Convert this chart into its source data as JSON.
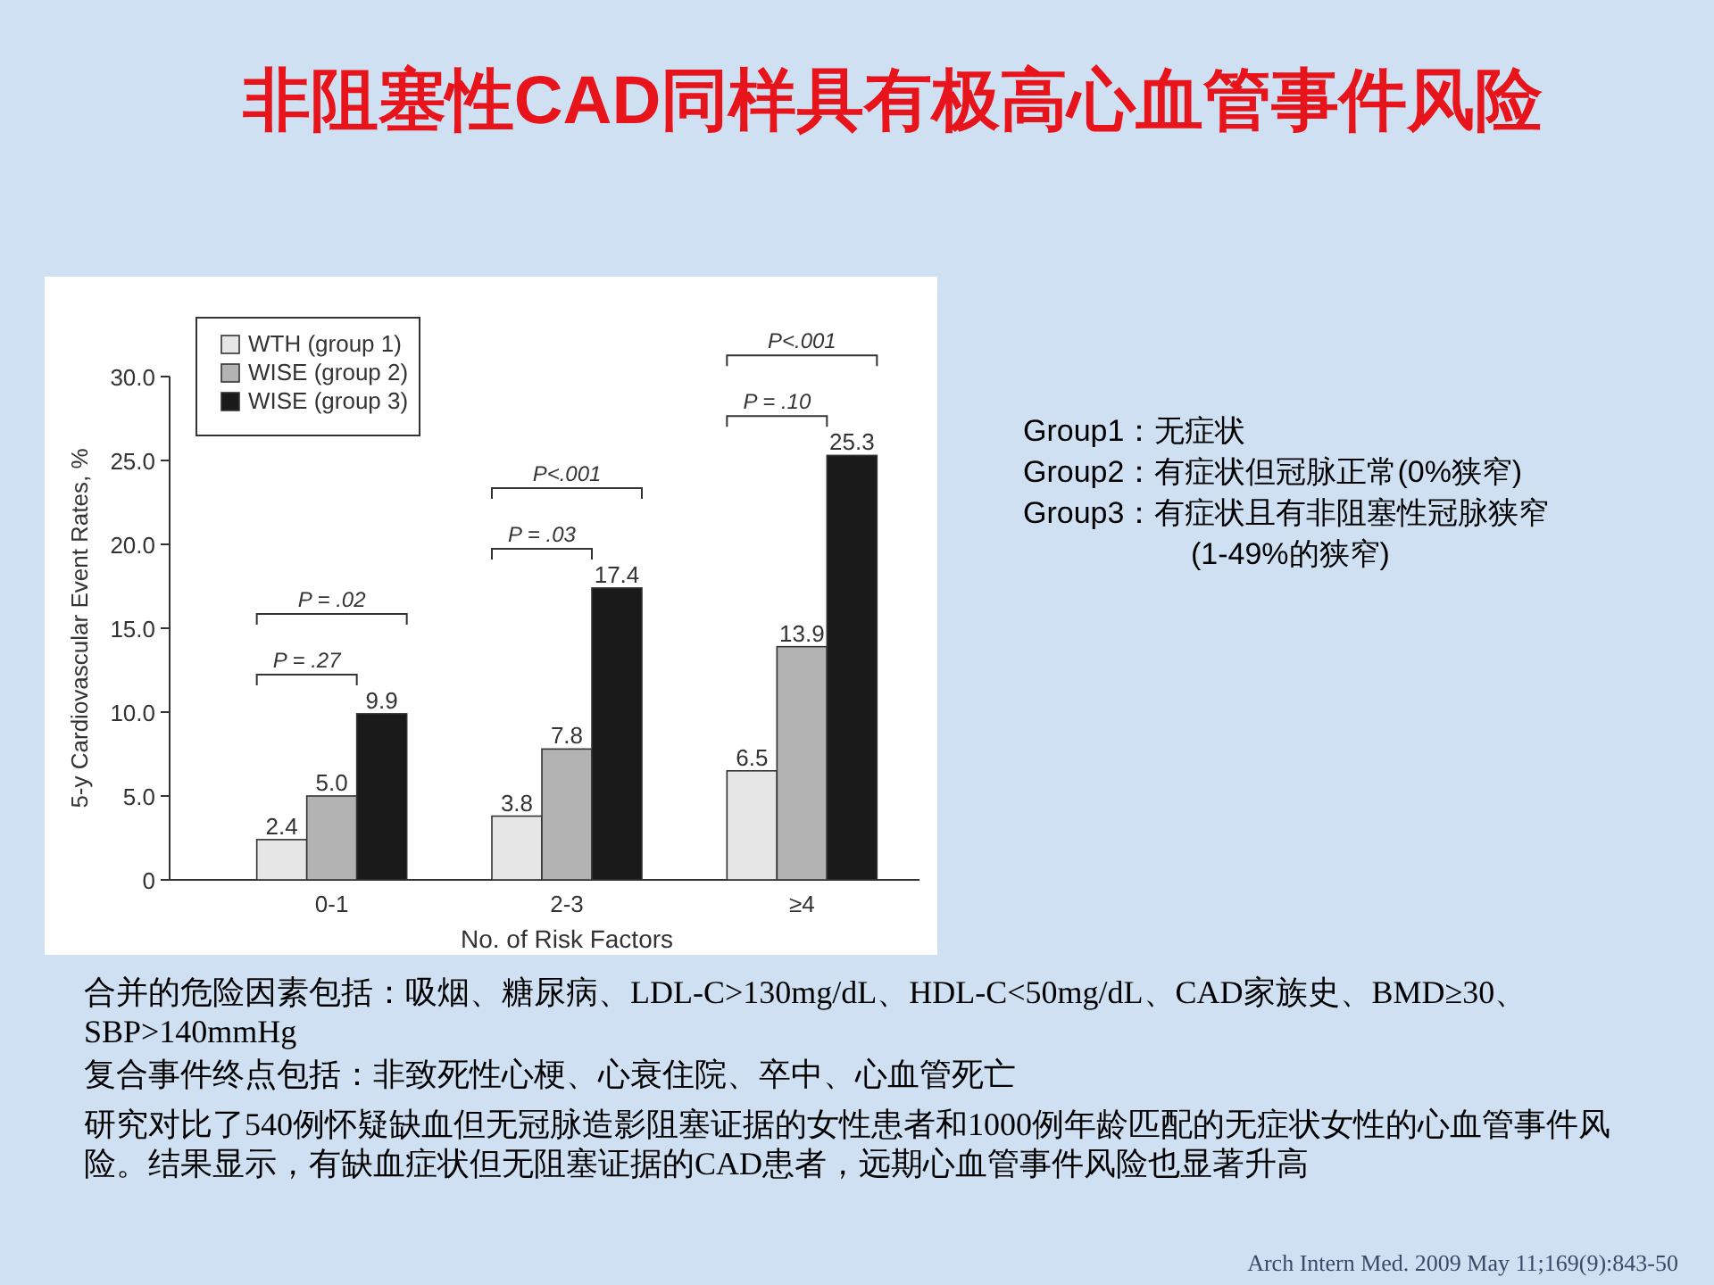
{
  "chart_data": {
    "type": "bar",
    "title": "非阻塞性CAD同样具有极高心血管事件风险",
    "xlabel": "No. of Risk Factors",
    "ylabel": "5-y Cardiovascular Event Rates, %",
    "categories": [
      "0-1",
      "2-3",
      "≥4"
    ],
    "series": [
      {
        "name": "WTH (group 1)",
        "color": "#e6e6e6",
        "values": [
          2.4,
          3.8,
          6.5
        ],
        "value_labels": [
          "2.4",
          "3.8",
          "6.5"
        ]
      },
      {
        "name": "WISE (group 2)",
        "color": "#b3b3b3",
        "values": [
          5.0,
          7.8,
          13.9
        ],
        "value_labels": [
          "5.0",
          "7.8",
          "13.9"
        ]
      },
      {
        "name": "WISE (group 3)",
        "color": "#1a1a1a",
        "values": [
          9.9,
          17.4,
          25.3
        ],
        "value_labels": [
          "9.9",
          "17.4",
          "25.3"
        ]
      }
    ],
    "ylim": [
      0,
      30
    ],
    "yticks": [
      0,
      {
        "value": 5,
        "label": "5.0"
      },
      {
        "value": 10,
        "label": "10.0"
      },
      {
        "value": 15,
        "label": "15.0"
      },
      {
        "value": 20,
        "label": "20.0"
      },
      {
        "value": 25,
        "label": "25.0"
      },
      {
        "value": 30,
        "label": "30.0"
      }
    ],
    "legend": "top left",
    "annotations": [
      "P = .27",
      "P = .02",
      "P = .03",
      "P<.001",
      "P = .10",
      "P<.001",
      "Group1：无症状",
      "Group2：有症状但冠脉正常(0%狭窄)",
      "Group3：有症状且有非阻塞性冠脉狭窄",
      "(1-49%的狭窄)",
      "合并的危险因素包括：吸烟、糖尿病、LDL-C>130mg/dL、HDL-C<50mg/dL、CAD家族史、BMD≥30、SBP>140mmHg",
      "复合事件终点包括：非致死性心梗、心衰住院、卒中、心血管死亡",
      "研究对比了540例怀疑缺血但无冠脉造影阻塞证据的女性患者和1000例年龄匹配的无症状女性的心血管事件风险。结果显示，有缺血症状但无阻塞证据的CAD患者，远期心血管事件风险也显著升高",
      "Arch Intern Med. 2009 May 11;169(9):843-50"
    ]
  }
}
